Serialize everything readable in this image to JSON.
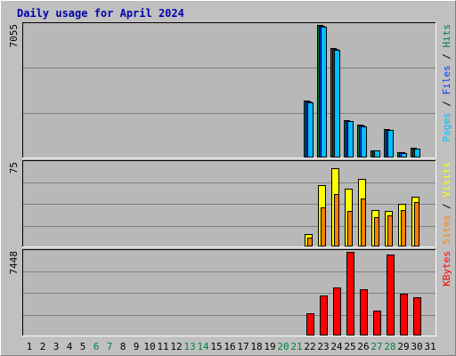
{
  "chart_data": {
    "type": "bar",
    "title": "Daily usage for April 2024",
    "days": [
      "1",
      "2",
      "3",
      "4",
      "5",
      "6",
      "7",
      "8",
      "9",
      "10",
      "11",
      "12",
      "13",
      "14",
      "15",
      "16",
      "17",
      "18",
      "19",
      "20",
      "21",
      "22",
      "23",
      "24",
      "25",
      "26",
      "27",
      "28",
      "29",
      "30",
      "31"
    ],
    "weekend_days": [
      6,
      7,
      13,
      14,
      20,
      21,
      27,
      28
    ],
    "colors": {
      "background": "#c0c0c0",
      "plot": "#b8b8b8",
      "title": "#0000aa",
      "hits": "#008040",
      "files": "#0040ff",
      "pages": "#00c0ff",
      "visits": "#ffff00",
      "sites": "#ff8000",
      "kbytes": "#ff0000",
      "weekend_label": "#008040"
    },
    "panels": [
      {
        "id": "hits-files-pages",
        "ymax_label": "7055",
        "ymax": 7055,
        "legend": [
          "Pages",
          "Files",
          "Hits"
        ],
        "legend_separator": " / ",
        "series": [
          {
            "name": "Hits",
            "values": [
              0,
              0,
              0,
              0,
              0,
              0,
              0,
              0,
              0,
              0,
              0,
              0,
              0,
              0,
              0,
              0,
              0,
              0,
              0,
              0,
              0,
              3040,
              7055,
              5830,
              1980,
              1740,
              400,
              1520,
              300,
              500,
              0
            ]
          },
          {
            "name": "Files",
            "values": [
              0,
              0,
              0,
              0,
              0,
              0,
              0,
              0,
              0,
              0,
              0,
              0,
              0,
              0,
              0,
              0,
              0,
              0,
              0,
              0,
              0,
              3000,
              7000,
              5790,
              1950,
              1700,
              380,
              1480,
              280,
              480,
              0
            ]
          },
          {
            "name": "Pages",
            "values": [
              0,
              0,
              0,
              0,
              0,
              0,
              0,
              0,
              0,
              0,
              0,
              0,
              0,
              0,
              0,
              0,
              0,
              0,
              0,
              0,
              0,
              2950,
              6950,
              5750,
              1920,
              1650,
              360,
              1450,
              260,
              460,
              0
            ]
          }
        ]
      },
      {
        "id": "visits-sites",
        "ymax_label": "75",
        "ymax": 75,
        "legend": [
          "Sites",
          "Visits"
        ],
        "legend_separator": " / ",
        "series": [
          {
            "name": "Visits",
            "values": [
              0,
              0,
              0,
              0,
              0,
              0,
              0,
              0,
              0,
              0,
              0,
              0,
              0,
              0,
              0,
              0,
              0,
              0,
              0,
              0,
              0,
              11,
              55,
              70,
              52,
              61,
              33,
              32,
              38,
              45,
              0
            ]
          },
          {
            "name": "Sites",
            "values": [
              0,
              0,
              0,
              0,
              0,
              0,
              0,
              0,
              0,
              0,
              0,
              0,
              0,
              0,
              0,
              0,
              0,
              0,
              0,
              0,
              0,
              8,
              35,
              47,
              32,
              43,
              26,
              28,
              33,
              40,
              0
            ]
          }
        ]
      },
      {
        "id": "kbytes",
        "ymax_label": "7448",
        "ymax": 7448,
        "legend": [
          "KBytes"
        ],
        "legend_separator": " / ",
        "series": [
          {
            "name": "KBytes",
            "values": [
              0,
              0,
              0,
              0,
              0,
              0,
              0,
              0,
              0,
              0,
              0,
              0,
              0,
              0,
              0,
              0,
              0,
              0,
              0,
              0,
              0,
              2000,
              3600,
              4300,
              7448,
              4100,
              2200,
              7200,
              3700,
              3400,
              0
            ]
          }
        ]
      }
    ]
  }
}
